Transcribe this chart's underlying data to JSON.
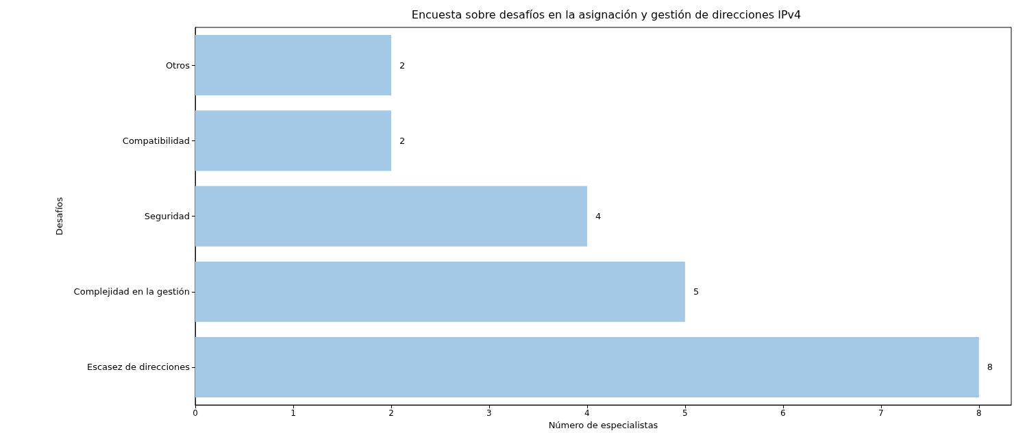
{
  "chart_data": {
    "type": "bar",
    "orientation": "horizontal",
    "title": "Encuesta sobre desafíos en la asignación y gestión de direcciones IPv4",
    "xlabel": "Número de especialistas",
    "ylabel": "Desafíos",
    "categories": [
      "Otros",
      "Compatibilidad",
      "Seguridad",
      "Complejidad en la gestión",
      "Escasez de direcciones"
    ],
    "values": [
      2,
      2,
      4,
      5,
      8
    ],
    "color": "#a3c9e6",
    "data_labels": true,
    "xlim": [
      0,
      8.33
    ],
    "xticks": [
      0,
      1,
      2,
      3,
      4,
      5,
      6,
      7,
      8
    ],
    "grid": false
  }
}
